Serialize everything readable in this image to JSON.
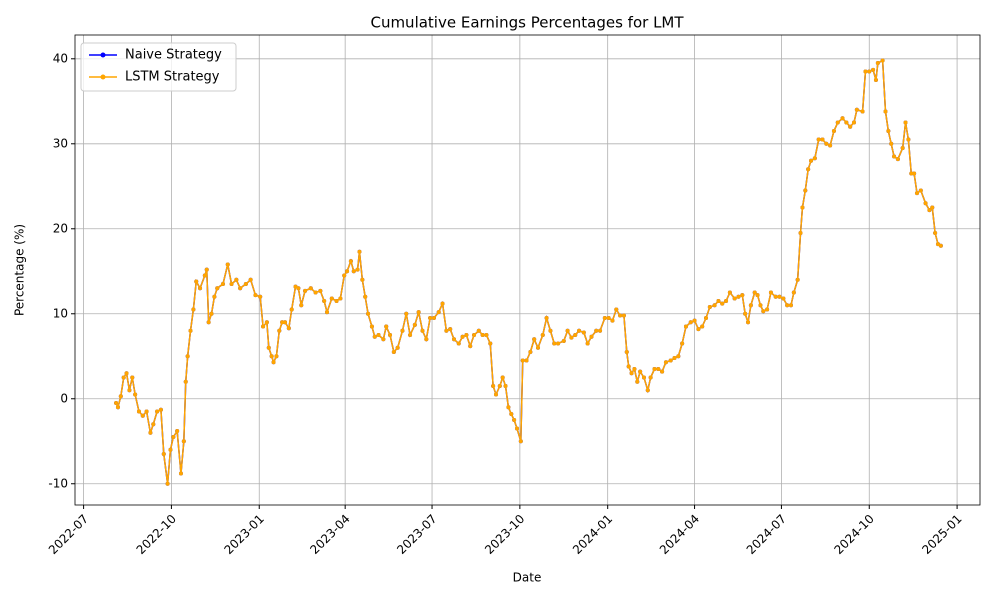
{
  "chart_data": {
    "type": "line",
    "title": "Cumulative Earnings Percentages for LMT",
    "xlabel": "Date",
    "ylabel": "Percentage (%)",
    "x": [
      "2022-08-04",
      "2022-08-06",
      "2022-08-09",
      "2022-08-12",
      "2022-08-15",
      "2022-08-18",
      "2022-08-21",
      "2022-08-24",
      "2022-08-28",
      "2022-09-01",
      "2022-09-05",
      "2022-09-09",
      "2022-09-12",
      "2022-09-16",
      "2022-09-20",
      "2022-09-23",
      "2022-09-27",
      "2022-09-30",
      "2022-10-03",
      "2022-10-07",
      "2022-10-11",
      "2022-10-14",
      "2022-10-16",
      "2022-10-18",
      "2022-10-21",
      "2022-10-24",
      "2022-10-27",
      "2022-10-31",
      "2022-11-05",
      "2022-11-07",
      "2022-11-09",
      "2022-11-12",
      "2022-11-15",
      "2022-11-18",
      "2022-11-24",
      "2022-11-29",
      "2022-12-03",
      "2022-12-08",
      "2022-12-12",
      "2022-12-18",
      "2022-12-23",
      "2022-12-28",
      "2023-01-02",
      "2023-01-05",
      "2023-01-09",
      "2023-01-11",
      "2023-01-14",
      "2023-01-16",
      "2023-01-19",
      "2023-01-22",
      "2023-01-25",
      "2023-01-28",
      "2023-02-01",
      "2023-02-04",
      "2023-02-08",
      "2023-02-11",
      "2023-02-14",
      "2023-02-18",
      "2023-02-24",
      "2023-03-01",
      "2023-03-06",
      "2023-03-10",
      "2023-03-13",
      "2023-03-18",
      "2023-03-23",
      "2023-03-27",
      "2023-03-31",
      "2023-04-03",
      "2023-04-07",
      "2023-04-10",
      "2023-04-14",
      "2023-04-16",
      "2023-04-19",
      "2023-04-22",
      "2023-04-25",
      "2023-04-29",
      "2023-05-02",
      "2023-05-06",
      "2023-05-11",
      "2023-05-14",
      "2023-05-18",
      "2023-05-22",
      "2023-05-26",
      "2023-05-31",
      "2023-06-04",
      "2023-06-08",
      "2023-06-13",
      "2023-06-17",
      "2023-06-21",
      "2023-06-25",
      "2023-06-29",
      "2023-07-03",
      "2023-07-08",
      "2023-07-12",
      "2023-07-16",
      "2023-07-20",
      "2023-07-24",
      "2023-07-29",
      "2023-08-02",
      "2023-08-06",
      "2023-08-10",
      "2023-08-14",
      "2023-08-19",
      "2023-08-23",
      "2023-08-27",
      "2023-08-31",
      "2023-09-03",
      "2023-09-06",
      "2023-09-10",
      "2023-09-13",
      "2023-09-16",
      "2023-09-19",
      "2023-09-22",
      "2023-09-25",
      "2023-09-28",
      "2023-10-02",
      "2023-10-04",
      "2023-10-08",
      "2023-10-12",
      "2023-10-16",
      "2023-10-20",
      "2023-10-25",
      "2023-10-29",
      "2023-11-02",
      "2023-11-06",
      "2023-11-10",
      "2023-11-16",
      "2023-11-20",
      "2023-11-24",
      "2023-11-28",
      "2023-12-02",
      "2023-12-07",
      "2023-12-11",
      "2023-12-15",
      "2023-12-20",
      "2023-12-24",
      "2023-12-29",
      "2024-01-02",
      "2024-01-06",
      "2024-01-10",
      "2024-01-14",
      "2024-01-18",
      "2024-01-21",
      "2024-01-23",
      "2024-01-26",
      "2024-01-29",
      "2024-02-01",
      "2024-02-04",
      "2024-02-08",
      "2024-02-12",
      "2024-02-15",
      "2024-02-19",
      "2024-02-23",
      "2024-02-27",
      "2024-03-02",
      "2024-03-07",
      "2024-03-11",
      "2024-03-15",
      "2024-03-19",
      "2024-03-23",
      "2024-03-28",
      "2024-04-01",
      "2024-04-05",
      "2024-04-09",
      "2024-04-13",
      "2024-04-17",
      "2024-04-22",
      "2024-04-26",
      "2024-04-30",
      "2024-05-04",
      "2024-05-08",
      "2024-05-13",
      "2024-05-17",
      "2024-05-21",
      "2024-05-24",
      "2024-05-27",
      "2024-05-30",
      "2024-06-03",
      "2024-06-06",
      "2024-06-09",
      "2024-06-12",
      "2024-06-16",
      "2024-06-20",
      "2024-06-25",
      "2024-06-29",
      "2024-07-03",
      "2024-07-07",
      "2024-07-11",
      "2024-07-14",
      "2024-07-18",
      "2024-07-21",
      "2024-07-23",
      "2024-07-26",
      "2024-07-29",
      "2024-08-01",
      "2024-08-05",
      "2024-08-09",
      "2024-08-13",
      "2024-08-17",
      "2024-08-21",
      "2024-08-25",
      "2024-08-29",
      "2024-09-03",
      "2024-09-07",
      "2024-09-11",
      "2024-09-15",
      "2024-09-18",
      "2024-09-24",
      "2024-09-27",
      "2024-10-01",
      "2024-10-05",
      "2024-10-08",
      "2024-10-10",
      "2024-10-15",
      "2024-10-18",
      "2024-10-21",
      "2024-10-24",
      "2024-10-27",
      "2024-10-31",
      "2024-11-05",
      "2024-11-08",
      "2024-11-11",
      "2024-11-14",
      "2024-11-17",
      "2024-11-20",
      "2024-11-24",
      "2024-11-29",
      "2024-12-03",
      "2024-12-06",
      "2024-12-09",
      "2024-12-12",
      "2024-12-15"
    ],
    "series": [
      {
        "name": "Naive Strategy",
        "color": "#0000ff",
        "values": [
          -0.5,
          -1,
          0.3,
          2.5,
          3,
          1,
          2.5,
          0.5,
          -1.5,
          -2,
          -1.5,
          -4,
          -3,
          -1.5,
          -1.3,
          -6.5,
          -10,
          -6,
          -4.5,
          -3.8,
          -8.8,
          -5,
          2,
          5,
          8,
          10.5,
          13.8,
          13,
          14.5,
          15.2,
          9,
          10,
          12,
          13,
          13.5,
          15.8,
          13.5,
          14,
          13,
          13.5,
          14,
          12.2,
          12,
          8.5,
          9,
          6,
          5,
          4.3,
          5,
          8,
          9,
          9,
          8.3,
          10.5,
          13.2,
          13,
          11,
          12.7,
          13,
          12.5,
          12.7,
          11.5,
          10.2,
          11.8,
          11.5,
          11.8,
          14.5,
          15,
          16.2,
          15,
          15.2,
          17.3,
          14,
          12,
          10,
          8.5,
          7.3,
          7.5,
          7,
          8.5,
          7.5,
          5.5,
          6,
          8,
          10,
          7.5,
          8.7,
          10.2,
          8,
          7,
          9.5,
          9.5,
          10.2,
          11.2,
          8,
          8.2,
          7,
          6.5,
          7.3,
          7.5,
          6.2,
          7.5,
          8,
          7.5,
          7.5,
          6.5,
          1.5,
          0.5,
          1.5,
          2.5,
          1.5,
          -1,
          -1.8,
          -2.5,
          -3.5,
          -5,
          4.5,
          4.5,
          5.5,
          7,
          6,
          7.5,
          9.5,
          8,
          6.5,
          6.5,
          6.8,
          8,
          7.2,
          7.5,
          8,
          7.8,
          6.5,
          7.3,
          8,
          8,
          9.5,
          9.5,
          9.2,
          10.5,
          9.8,
          9.8,
          5.5,
          3.8,
          3,
          3.5,
          2,
          3.2,
          2.5,
          1,
          2.5,
          3.5,
          3.5,
          3.2,
          4.3,
          4.5,
          4.8,
          5,
          6.5,
          8.5,
          9,
          9.2,
          8.2,
          8.5,
          9.5,
          10.8,
          11,
          11.5,
          11.2,
          11.5,
          12.5,
          11.8,
          12,
          12.2,
          10,
          9,
          11,
          12.5,
          12.2,
          11,
          10.3,
          10.5,
          12.5,
          12,
          12,
          11.8,
          11,
          11,
          12.5,
          14,
          19.5,
          22.5,
          24.5,
          27,
          28,
          28.3,
          30.5,
          30.5,
          30,
          29.8,
          31.5,
          32.5,
          33,
          32.5,
          32,
          32.5,
          34,
          33.8,
          38.5,
          38.5,
          38.7,
          37.5,
          39.5,
          39.8,
          33.8,
          31.5,
          30,
          28.5,
          28.2,
          29.5,
          32.5,
          30.5,
          26.5,
          26.5,
          24.2,
          24.5,
          23,
          22.2,
          22.5,
          19.5,
          18.2,
          18
        ]
      },
      {
        "name": "LSTM Strategy",
        "color": "#ffa500",
        "values": [
          -0.5,
          -1,
          0.3,
          2.5,
          3,
          1,
          2.5,
          0.5,
          -1.5,
          -2,
          -1.5,
          -4,
          -3,
          -1.5,
          -1.3,
          -6.5,
          -10,
          -6,
          -4.5,
          -3.8,
          -8.8,
          -5,
          2,
          5,
          8,
          10.5,
          13.8,
          13,
          14.5,
          15.2,
          9,
          10,
          12,
          13,
          13.5,
          15.8,
          13.5,
          14,
          13,
          13.5,
          14,
          12.2,
          12,
          8.5,
          9,
          6,
          5,
          4.3,
          5,
          8,
          9,
          9,
          8.3,
          10.5,
          13.2,
          13,
          11,
          12.7,
          13,
          12.5,
          12.7,
          11.5,
          10.2,
          11.8,
          11.5,
          11.8,
          14.5,
          15,
          16.2,
          15,
          15.2,
          17.3,
          14,
          12,
          10,
          8.5,
          7.3,
          7.5,
          7,
          8.5,
          7.5,
          5.5,
          6,
          8,
          10,
          7.5,
          8.7,
          10.2,
          8,
          7,
          9.5,
          9.5,
          10.2,
          11.2,
          8,
          8.2,
          7,
          6.5,
          7.3,
          7.5,
          6.2,
          7.5,
          8,
          7.5,
          7.5,
          6.5,
          1.5,
          0.5,
          1.5,
          2.5,
          1.5,
          -1,
          -1.8,
          -2.5,
          -3.5,
          -5,
          4.5,
          4.5,
          5.5,
          7,
          6,
          7.5,
          9.5,
          8,
          6.5,
          6.5,
          6.8,
          8,
          7.2,
          7.5,
          8,
          7.8,
          6.5,
          7.3,
          8,
          8,
          9.5,
          9.5,
          9.2,
          10.5,
          9.8,
          9.8,
          5.5,
          3.8,
          3,
          3.5,
          2,
          3.2,
          2.5,
          1,
          2.5,
          3.5,
          3.5,
          3.2,
          4.3,
          4.5,
          4.8,
          5,
          6.5,
          8.5,
          9,
          9.2,
          8.2,
          8.5,
          9.5,
          10.8,
          11,
          11.5,
          11.2,
          11.5,
          12.5,
          11.8,
          12,
          12.2,
          10,
          9,
          11,
          12.5,
          12.2,
          11,
          10.3,
          10.5,
          12.5,
          12,
          12,
          11.8,
          11,
          11,
          12.5,
          14,
          19.5,
          22.5,
          24.5,
          27,
          28,
          28.3,
          30.5,
          30.5,
          30,
          29.8,
          31.5,
          32.5,
          33,
          32.5,
          32,
          32.5,
          34,
          33.8,
          38.5,
          38.5,
          38.7,
          37.5,
          39.5,
          39.8,
          33.8,
          31.5,
          30,
          28.5,
          28.2,
          29.5,
          32.5,
          30.5,
          26.5,
          26.5,
          24.2,
          24.5,
          23,
          22.2,
          22.5,
          19.5,
          18.2,
          18
        ]
      }
    ],
    "xlim": [
      "2022-06-22",
      "2025-01-25"
    ],
    "xticks": [
      {
        "value": "2022-07-01",
        "label": "2022-07"
      },
      {
        "value": "2022-10-01",
        "label": "2022-10"
      },
      {
        "value": "2023-01-01",
        "label": "2023-01"
      },
      {
        "value": "2023-04-01",
        "label": "2023-04"
      },
      {
        "value": "2023-07-01",
        "label": "2023-07"
      },
      {
        "value": "2023-10-01",
        "label": "2023-10"
      },
      {
        "value": "2024-01-01",
        "label": "2024-01"
      },
      {
        "value": "2024-04-01",
        "label": "2024-04"
      },
      {
        "value": "2024-07-01",
        "label": "2024-07"
      },
      {
        "value": "2024-10-01",
        "label": "2024-10"
      },
      {
        "value": "2025-01-01",
        "label": "2025-01"
      }
    ],
    "ylim": [
      -12.5,
      42.8
    ],
    "yticks": [
      -10,
      0,
      10,
      20,
      30,
      40
    ],
    "grid": true,
    "legend": "upper left"
  }
}
